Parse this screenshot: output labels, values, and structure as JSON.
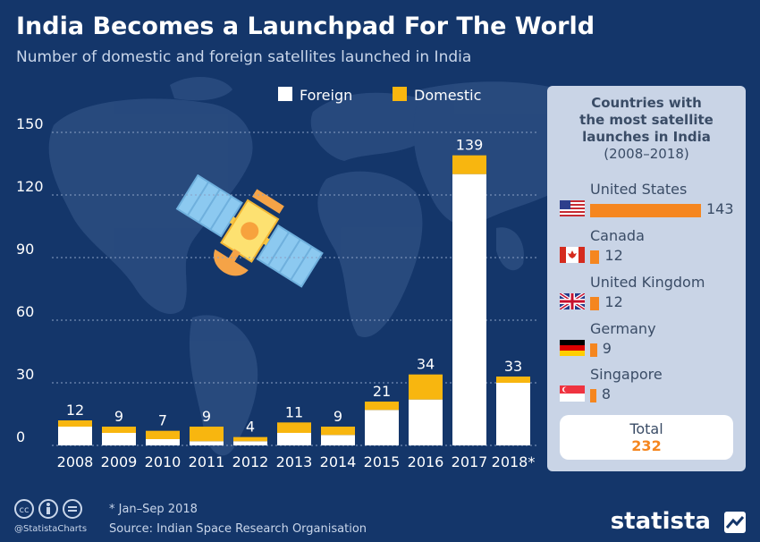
{
  "header": {
    "title": "India Becomes a Launchpad For The World",
    "subtitle": "Number of domestic and foreign satellites launched in India"
  },
  "colors": {
    "background": "#14366a",
    "foreign": "#ffffff",
    "domestic": "#f8b60f",
    "accent": "#f5861f",
    "panel": "#c9d4e6"
  },
  "chart_data": {
    "type": "bar",
    "stacked": true,
    "categories": [
      "2008",
      "2009",
      "2010",
      "2011",
      "2012",
      "2013",
      "2014",
      "2015",
      "2016",
      "2017",
      "2018*"
    ],
    "series": [
      {
        "name": "Foreign",
        "values": [
          9,
          6,
          3,
          2,
          2,
          6,
          5,
          17,
          22,
          130,
          30
        ]
      },
      {
        "name": "Domestic",
        "values": [
          3,
          3,
          4,
          7,
          2,
          5,
          4,
          4,
          12,
          9,
          3
        ]
      }
    ],
    "totals": [
      12,
      9,
      7,
      9,
      4,
      11,
      9,
      21,
      34,
      139,
      33
    ],
    "yticks": [
      0,
      30,
      60,
      90,
      120,
      150
    ],
    "ylim": [
      0,
      150
    ],
    "grid": true,
    "legend": "top"
  },
  "panel": {
    "title_lines": [
      "Countries with",
      "the most satellite",
      "launches in India"
    ],
    "period": "(2008–2018)",
    "max_value": 143,
    "countries": [
      {
        "name": "United States",
        "value": 143,
        "flag_icon": "us-flag-icon"
      },
      {
        "name": "Canada",
        "value": 12,
        "flag_icon": "canada-flag-icon"
      },
      {
        "name": "United Kingdom",
        "value": 12,
        "flag_icon": "uk-flag-icon"
      },
      {
        "name": "Germany",
        "value": 9,
        "flag_icon": "germany-flag-icon"
      },
      {
        "name": "Singapore",
        "value": 8,
        "flag_icon": "singapore-flag-icon"
      }
    ],
    "total_label": "Total",
    "total_value": "232"
  },
  "footer": {
    "note": "* Jan–Sep 2018",
    "source": "Source: Indian Space Research Organisation",
    "handle": "@StatistaCharts",
    "brand": "statista"
  }
}
